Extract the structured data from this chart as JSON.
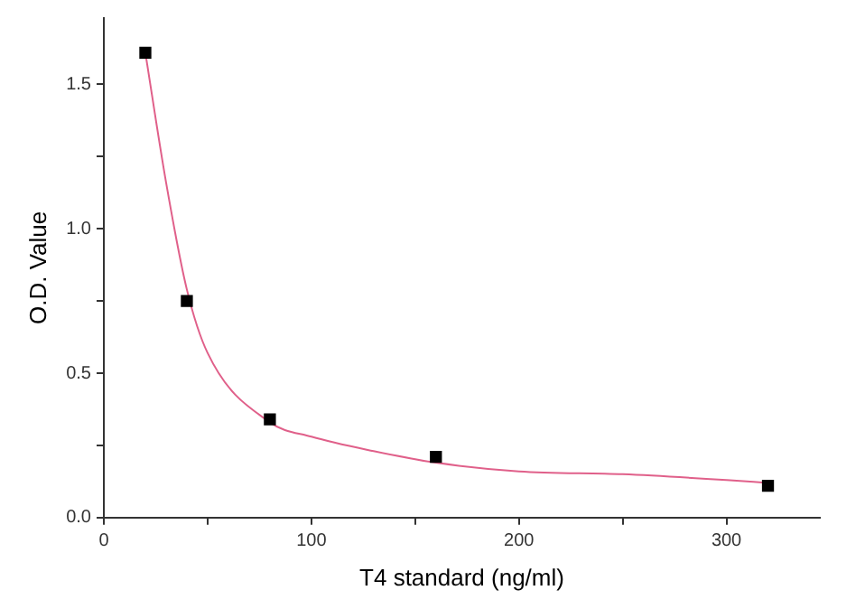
{
  "chart_data": {
    "type": "scatter",
    "xlabel": "T4 standard (ng/ml)",
    "ylabel": "O.D. Value",
    "series": [
      {
        "color": "#000000",
        "marker": "square",
        "x": [
          20,
          40,
          80,
          160,
          320
        ],
        "values": [
          1.61,
          0.75,
          0.34,
          0.21,
          0.11
        ]
      },
      {
        "type": "line",
        "color": "#e0608a",
        "marker": "none",
        "x": [
          20,
          30,
          40,
          50,
          80,
          100,
          130,
          160,
          200,
          250,
          300,
          320
        ],
        "values": [
          1.61,
          1.16,
          0.79,
          0.57,
          0.33,
          0.28,
          0.23,
          0.19,
          0.16,
          0.15,
          0.13,
          0.12
        ]
      }
    ],
    "xlim": [
      0,
      345
    ],
    "xticks": [
      0,
      {
        "value": 50,
        "label": null
      },
      100,
      {
        "value": 150,
        "label": null
      },
      200,
      {
        "value": 250,
        "label": null
      },
      300
    ],
    "ylim": [
      0,
      1.73
    ],
    "yticks": [
      {
        "value": 0,
        "label": "0.0"
      },
      {
        "value": 0.25,
        "label": null
      },
      {
        "value": 0.5,
        "label": "0.5"
      },
      {
        "value": 0.75,
        "label": null
      },
      {
        "value": 1,
        "label": "1.0"
      },
      {
        "value": 1.25,
        "label": null
      },
      {
        "value": 1.5,
        "label": "1.5"
      }
    ],
    "grid": false,
    "legend": false
  }
}
